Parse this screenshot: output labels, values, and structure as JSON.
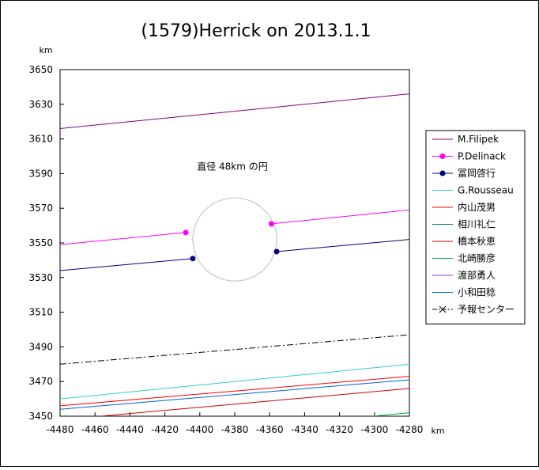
{
  "chart_data": {
    "type": "line",
    "title": "(1579)Herrick on 2013.1.1",
    "x_unit": "km",
    "y_unit": "km",
    "xlim": [
      -4480,
      -4280
    ],
    "ylim": [
      3450,
      3650
    ],
    "x_ticks": [
      "-4480",
      "-4460",
      "-4440",
      "-4420",
      "-4400",
      "-4380",
      "-4360",
      "-4340",
      "-4320",
      "-4300",
      "-4280"
    ],
    "y_ticks": [
      "3450",
      "3470",
      "3490",
      "3510",
      "3530",
      "3550",
      "3570",
      "3590",
      "3610",
      "3630",
      "3650"
    ],
    "grid": false,
    "legend_position": "right",
    "annotation": "直径 48km の円",
    "circle": {
      "center": [
        -4380,
        3552
      ],
      "diameter_km": 48,
      "color": "#c8c8c8"
    },
    "series": [
      {
        "name": "M.Filipek",
        "color": "#800080",
        "style": "solid",
        "segments": [
          [
            [
              -4480,
              3616
            ],
            [
              -4280,
              3636
            ]
          ]
        ]
      },
      {
        "name": "P.Delinack",
        "color": "#ff00ff",
        "style": "solid",
        "marker": "dot",
        "segments": [
          [
            [
              -4480,
              3549
            ],
            [
              -4408,
              3556
            ]
          ],
          [
            [
              -4359,
              3561
            ],
            [
              -4280,
              3569
            ]
          ]
        ]
      },
      {
        "name": "冨岡啓行",
        "color": "#000080",
        "style": "solid",
        "marker": "dot",
        "segments": [
          [
            [
              -4480,
              3534
            ],
            [
              -4404,
              3541
            ]
          ],
          [
            [
              -4356,
              3545
            ],
            [
              -4280,
              3552
            ]
          ]
        ]
      },
      {
        "name": "G.Rousseau",
        "color": "#33cccc",
        "style": "solid",
        "segments": [
          [
            [
              -4480,
              3460
            ],
            [
              -4280,
              3480
            ]
          ]
        ]
      },
      {
        "name": "内山茂男",
        "color": "#ff0000",
        "style": "solid",
        "segments": [
          [
            [
              -4480,
              3456
            ],
            [
              -4280,
              3473
            ]
          ]
        ]
      },
      {
        "name": "相川礼仁",
        "color": "#008080",
        "style": "solid",
        "segments": []
      },
      {
        "name": "橋本秋恵",
        "color": "#cc0000",
        "style": "solid",
        "segments": [
          [
            [
              -4457,
              3450
            ],
            [
              -4280,
              3466
            ]
          ]
        ]
      },
      {
        "name": "北崎勝彦",
        "color": "#00aa44",
        "style": "solid",
        "segments": [
          [
            [
              -4301,
              3450
            ],
            [
              -4280,
              3452
            ]
          ]
        ]
      },
      {
        "name": "渡部勇人",
        "color": "#9933cc",
        "style": "solid",
        "segments": []
      },
      {
        "name": "小和田稔",
        "color": "#0066cc",
        "style": "solid",
        "segments": [
          [
            [
              -4480,
              3454
            ],
            [
              -4280,
              3471
            ]
          ]
        ]
      },
      {
        "name": "予報センター",
        "color": "#000000",
        "style": "dashdot",
        "marker": "x",
        "segments": [
          [
            [
              -4480,
              3480
            ],
            [
              -4280,
              3497
            ]
          ]
        ]
      }
    ]
  }
}
